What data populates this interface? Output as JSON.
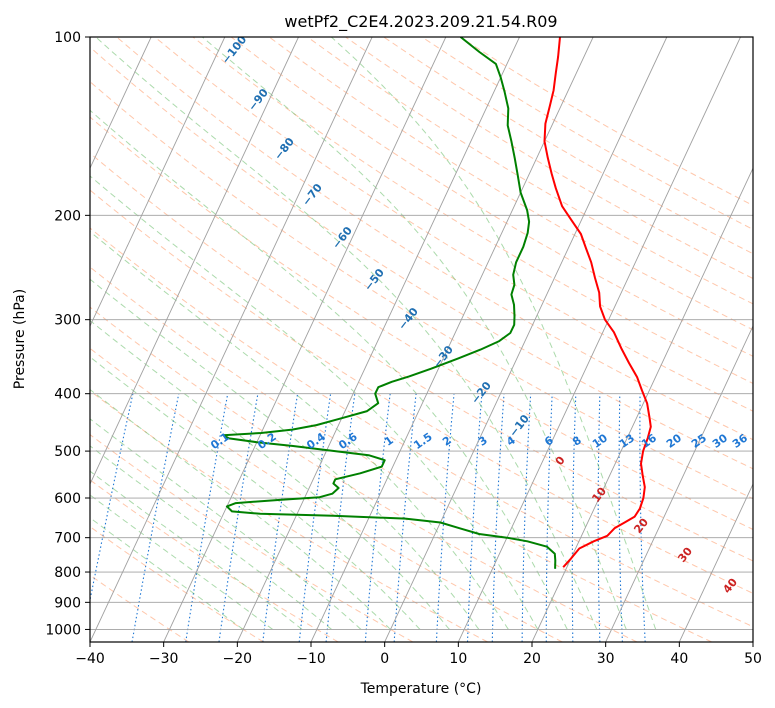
{
  "chart_data": {
    "type": "line",
    "subtype": "skew-t log-p thermodynamic diagram",
    "title": "wetPf2_C2E4.2023.209.21.54.R09",
    "xlabel": "Temperature (°C)",
    "ylabel": "Pressure (hPa)",
    "xlim": [
      -40,
      50
    ],
    "ylim": [
      1050,
      100
    ],
    "y_scale": "log",
    "x_ticks": [
      "−40",
      "−30",
      "−20",
      "−10",
      "0",
      "10",
      "20",
      "30",
      "40",
      "50"
    ],
    "y_ticks": [
      "100",
      "200",
      "300",
      "400",
      "500",
      "600",
      "700",
      "800",
      "900",
      "1000"
    ],
    "grid": true,
    "series": [
      {
        "color": "#ff0000",
        "points": [
          [
            19.5,
            785
          ],
          [
            20.0,
            760
          ],
          [
            20.5,
            730
          ],
          [
            22.0,
            710
          ],
          [
            23.5,
            695
          ],
          [
            24.0,
            675
          ],
          [
            25.0,
            660
          ],
          [
            26.0,
            645
          ],
          [
            26.2,
            625
          ],
          [
            26.0,
            600
          ],
          [
            25.5,
            575
          ],
          [
            24.5,
            550
          ],
          [
            23.5,
            525
          ],
          [
            23.0,
            500
          ],
          [
            22.8,
            475
          ],
          [
            22.5,
            455
          ],
          [
            21.8,
            440
          ],
          [
            20.5,
            415
          ],
          [
            19.0,
            395
          ],
          [
            17.5,
            375
          ],
          [
            15.5,
            355
          ],
          [
            13.5,
            335
          ],
          [
            11.5,
            315
          ],
          [
            9.5,
            300
          ],
          [
            8.0,
            285
          ],
          [
            7.0,
            270
          ],
          [
            5.5,
            255
          ],
          [
            4.0,
            240
          ],
          [
            2.5,
            228
          ],
          [
            0.8,
            215
          ],
          [
            -1.5,
            203
          ],
          [
            -3.5,
            193
          ],
          [
            -5.5,
            180
          ],
          [
            -7.0,
            170
          ],
          [
            -8.5,
            160
          ],
          [
            -10.0,
            150
          ],
          [
            -11.0,
            140
          ],
          [
            -11.5,
            131
          ],
          [
            -12.0,
            123
          ],
          [
            -12.8,
            115
          ],
          [
            -13.5,
            108
          ],
          [
            -14.5,
            100
          ]
        ]
      },
      {
        "color": "#008000",
        "points": [
          [
            18.5,
            790
          ],
          [
            18.0,
            765
          ],
          [
            17.5,
            745
          ],
          [
            16.0,
            725
          ],
          [
            13.0,
            710
          ],
          [
            10.0,
            700
          ],
          [
            6.0,
            690
          ],
          [
            3.0,
            675
          ],
          [
            0.0,
            660
          ],
          [
            -5.0,
            650
          ],
          [
            -15.0,
            643
          ],
          [
            -25.0,
            638
          ],
          [
            -29.0,
            632
          ],
          [
            -30.0,
            620
          ],
          [
            -29.0,
            612
          ],
          [
            -23.0,
            604
          ],
          [
            -18.0,
            598
          ],
          [
            -16.5,
            590
          ],
          [
            -16.0,
            577
          ],
          [
            -17.0,
            567
          ],
          [
            -17.0,
            558
          ],
          [
            -14.0,
            545
          ],
          [
            -11.5,
            531
          ],
          [
            -11.5,
            518
          ],
          [
            -14.0,
            508
          ],
          [
            -20.0,
            498
          ],
          [
            -25.0,
            490
          ],
          [
            -30.0,
            483
          ],
          [
            -34.0,
            476
          ],
          [
            -35.0,
            470
          ],
          [
            -30.0,
            466
          ],
          [
            -26.0,
            460
          ],
          [
            -23.0,
            452
          ],
          [
            -20.0,
            440
          ],
          [
            -17.0,
            428
          ],
          [
            -16.0,
            415
          ],
          [
            -17.0,
            400
          ],
          [
            -17.0,
            390
          ],
          [
            -15.5,
            382
          ],
          [
            -13.5,
            374
          ],
          [
            -11.0,
            363
          ],
          [
            -8.0,
            349
          ],
          [
            -5.5,
            337
          ],
          [
            -3.5,
            326
          ],
          [
            -2.5,
            316
          ],
          [
            -2.5,
            306
          ],
          [
            -3.0,
            296
          ],
          [
            -3.8,
            283
          ],
          [
            -4.8,
            272
          ],
          [
            -5.0,
            262
          ],
          [
            -5.8,
            252
          ],
          [
            -6.2,
            240
          ],
          [
            -6.2,
            226
          ],
          [
            -6.5,
            214
          ],
          [
            -7.0,
            205
          ],
          [
            -8.0,
            196
          ],
          [
            -10.0,
            183
          ],
          [
            -11.5,
            171
          ],
          [
            -13.0,
            160
          ],
          [
            -14.5,
            150
          ],
          [
            -16.0,
            141
          ],
          [
            -17.0,
            132
          ],
          [
            -18.5,
            124
          ],
          [
            -20.0,
            117
          ],
          [
            -21.5,
            111
          ],
          [
            -24.5,
            106
          ],
          [
            -28.0,
            100
          ]
        ]
      }
    ],
    "background_lines": {
      "isotherms_color": "#a0a0a0",
      "dry_adiabats_color": "#ff9966",
      "moist_adiabats_color": "#66bb66",
      "mixing_ratio_color": "#1f77d4",
      "dry_adiabat_labels": [
        "−100",
        "−90",
        "−80",
        "−70",
        "−60",
        "−50",
        "−40",
        "−30",
        "−20",
        "−10",
        "0",
        "10",
        "20",
        "30",
        "40"
      ],
      "mixing_ratio_labels": [
        "0.1",
        "0.2",
        "0.4",
        "0.6",
        "1",
        "1.5",
        "2",
        "3",
        "4",
        "6",
        "8",
        "10",
        "13",
        "16",
        "20",
        "25",
        "30",
        "36"
      ]
    }
  }
}
